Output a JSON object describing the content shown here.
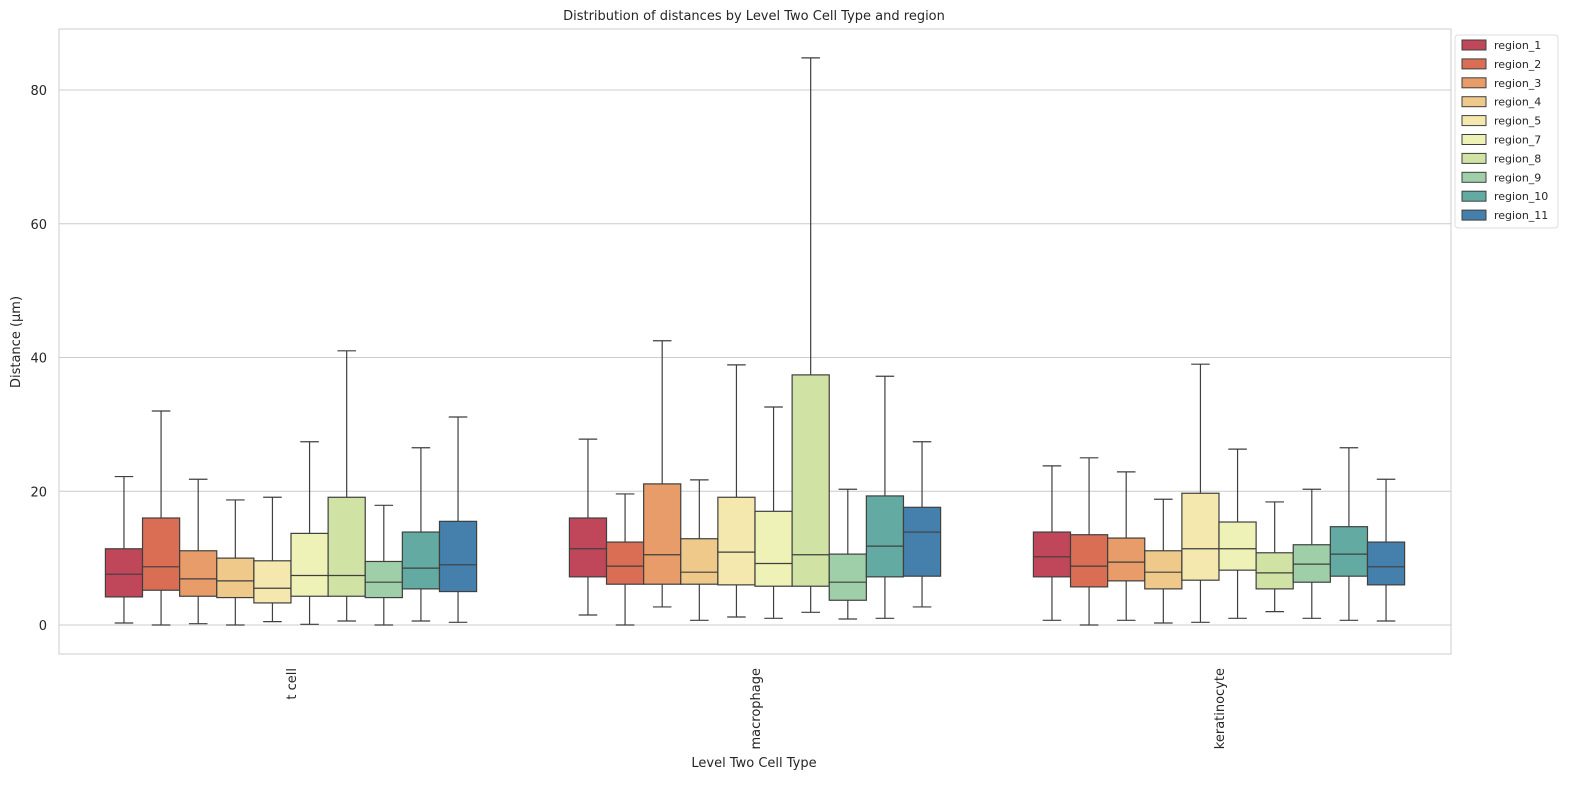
{
  "chart_data": {
    "type": "box",
    "title": "Distribution of distances by Level Two Cell Type and region",
    "xlabel": "Level Two Cell Type",
    "ylabel": "Distance (µm)",
    "ylim": [
      -4.3,
      89
    ],
    "yticks": [
      0,
      20,
      40,
      60,
      80
    ],
    "grid": "horizontal",
    "legend_position": "upper-right-outside",
    "categories": [
      "t cell",
      "macrophage",
      "keratinocyte"
    ],
    "series": [
      {
        "name": "region_1",
        "color": "#c0465a",
        "boxes": [
          {
            "whislo": 0.3,
            "q1": 4.2,
            "med": 7.6,
            "q3": 11.4,
            "whishi": 22.2
          },
          {
            "whislo": 1.5,
            "q1": 7.2,
            "med": 11.4,
            "q3": 16.0,
            "whishi": 27.8
          },
          {
            "whislo": 0.7,
            "q1": 7.2,
            "med": 10.2,
            "q3": 13.9,
            "whishi": 23.8
          }
        ]
      },
      {
        "name": "region_2",
        "color": "#d96e55",
        "boxes": [
          {
            "whislo": 0.0,
            "q1": 5.2,
            "med": 8.7,
            "q3": 16.0,
            "whishi": 32.0
          },
          {
            "whislo": 0.0,
            "q1": 6.1,
            "med": 8.8,
            "q3": 12.4,
            "whishi": 19.6
          },
          {
            "whislo": 0.0,
            "q1": 5.7,
            "med": 8.8,
            "q3": 13.5,
            "whishi": 25.0
          }
        ]
      },
      {
        "name": "region_3",
        "color": "#e79c69",
        "boxes": [
          {
            "whislo": 0.2,
            "q1": 4.3,
            "med": 6.9,
            "q3": 11.1,
            "whishi": 21.8
          },
          {
            "whislo": 2.7,
            "q1": 6.1,
            "med": 10.5,
            "q3": 21.1,
            "whishi": 42.5
          },
          {
            "whislo": 0.7,
            "q1": 6.6,
            "med": 9.4,
            "q3": 13.0,
            "whishi": 22.9
          }
        ]
      },
      {
        "name": "region_4",
        "color": "#eec98a",
        "boxes": [
          {
            "whislo": 0.0,
            "q1": 4.1,
            "med": 6.6,
            "q3": 10.0,
            "whishi": 18.7
          },
          {
            "whislo": 0.7,
            "q1": 6.1,
            "med": 7.9,
            "q3": 12.9,
            "whishi": 21.7
          },
          {
            "whislo": 0.3,
            "q1": 5.4,
            "med": 7.9,
            "q3": 11.1,
            "whishi": 18.8
          }
        ]
      },
      {
        "name": "region_5",
        "color": "#f4e8ae",
        "boxes": [
          {
            "whislo": 0.5,
            "q1": 3.3,
            "med": 5.5,
            "q3": 9.6,
            "whishi": 19.1
          },
          {
            "whislo": 1.2,
            "q1": 6.0,
            "med": 10.9,
            "q3": 19.1,
            "whishi": 38.9
          },
          {
            "whislo": 0.4,
            "q1": 6.7,
            "med": 11.4,
            "q3": 19.7,
            "whishi": 39.0
          }
        ]
      },
      {
        "name": "region_7",
        "color": "#eef2b7",
        "boxes": [
          {
            "whislo": 0.1,
            "q1": 4.3,
            "med": 7.4,
            "q3": 13.7,
            "whishi": 27.4
          },
          {
            "whislo": 1.0,
            "q1": 5.8,
            "med": 9.2,
            "q3": 17.0,
            "whishi": 32.6
          },
          {
            "whislo": 1.0,
            "q1": 8.2,
            "med": 11.4,
            "q3": 15.4,
            "whishi": 26.3
          }
        ]
      },
      {
        "name": "region_8",
        "color": "#d0e2a4",
        "boxes": [
          {
            "whislo": 0.6,
            "q1": 4.3,
            "med": 7.4,
            "q3": 19.1,
            "whishi": 41.0
          },
          {
            "whislo": 1.9,
            "q1": 5.8,
            "med": 10.5,
            "q3": 37.4,
            "whishi": 84.8
          },
          {
            "whislo": 2.0,
            "q1": 5.4,
            "med": 7.8,
            "q3": 10.8,
            "whishi": 18.4
          }
        ]
      },
      {
        "name": "region_9",
        "color": "#9fcfa8",
        "boxes": [
          {
            "whislo": 0.0,
            "q1": 4.1,
            "med": 6.4,
            "q3": 9.5,
            "whishi": 17.9
          },
          {
            "whislo": 0.9,
            "q1": 3.7,
            "med": 6.4,
            "q3": 10.6,
            "whishi": 20.3
          },
          {
            "whislo": 1.0,
            "q1": 6.4,
            "med": 9.1,
            "q3": 12.0,
            "whishi": 20.3
          }
        ]
      },
      {
        "name": "region_10",
        "color": "#63aba2",
        "boxes": [
          {
            "whislo": 0.6,
            "q1": 5.4,
            "med": 8.5,
            "q3": 13.9,
            "whishi": 26.5
          },
          {
            "whislo": 1.0,
            "q1": 7.2,
            "med": 11.8,
            "q3": 19.3,
            "whishi": 37.2
          },
          {
            "whislo": 0.7,
            "q1": 7.3,
            "med": 10.6,
            "q3": 14.7,
            "whishi": 26.5
          }
        ]
      },
      {
        "name": "region_11",
        "color": "#4580ad",
        "boxes": [
          {
            "whislo": 0.4,
            "q1": 5.0,
            "med": 9.0,
            "q3": 15.5,
            "whishi": 31.1
          },
          {
            "whislo": 2.7,
            "q1": 7.3,
            "med": 13.9,
            "q3": 17.6,
            "whishi": 27.4
          },
          {
            "whislo": 0.6,
            "q1": 6.0,
            "med": 8.7,
            "q3": 12.4,
            "whishi": 21.8
          }
        ]
      }
    ]
  }
}
